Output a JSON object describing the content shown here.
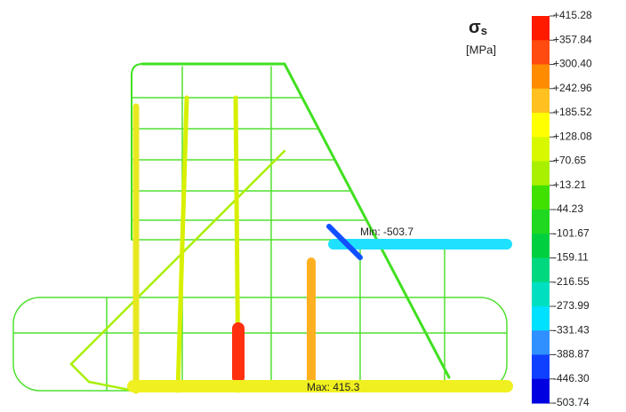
{
  "legend": {
    "symbol": "σ",
    "subscript": "s",
    "unit": "[MPa]",
    "levels": [
      "+415.28",
      "+357.84",
      "+300.40",
      "+242.96",
      "+185.52",
      "+128.08",
      "+70.65",
      "+13.21",
      "-44.23",
      "-101.67",
      "-159.11",
      "-216.55",
      "-273.99",
      "-331.43",
      "-388.87",
      "-446.30",
      "-503.74"
    ],
    "colors": [
      "#ff1a00",
      "#ff4a10",
      "#ff8c00",
      "#ffc020",
      "#ffff00",
      "#d8f800",
      "#a8f000",
      "#40e000",
      "#20d820",
      "#00d040",
      "#00d880",
      "#00e0c0",
      "#00e0ff",
      "#3090ff",
      "#1040ff",
      "#0000e0"
    ]
  },
  "annotations": {
    "min": "Min: -503.7",
    "max": "Max: 415.3"
  }
}
